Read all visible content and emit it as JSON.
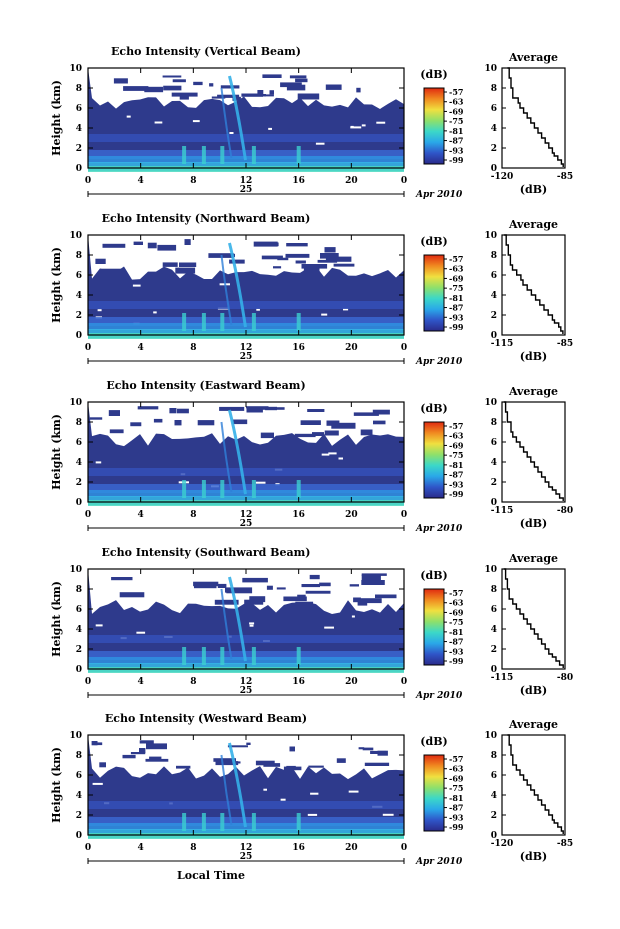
{
  "shared": {
    "ylabel": "Height (km)",
    "day_label": "25",
    "month_year": "Apr 2010",
    "xlabel": "Local Time",
    "unit_label": "(dB)",
    "avg_title": "Average",
    "avg_xlabel": "(dB)",
    "time_ticks": [
      "0",
      "4",
      "8",
      "12",
      "16",
      "20",
      "0"
    ],
    "height_ticks": [
      "0",
      "2",
      "4",
      "6",
      "8",
      "10"
    ],
    "colorbar_ticks": [
      "-57",
      "-63",
      "-69",
      "-75",
      "-81",
      "-87",
      "-93",
      "-99"
    ],
    "colors": {
      "background": "#2e3a8c",
      "colorbar_stops": [
        "#2a2a8a",
        "#2f55c8",
        "#2aa8e8",
        "#3cd8c8",
        "#8fe06a",
        "#f0e040",
        "#f08a20",
        "#e02a10"
      ]
    }
  },
  "panels": [
    {
      "title": "Echo Intensity (Vertical Beam)",
      "avg_ticks": [
        "-120",
        "-85"
      ]
    },
    {
      "title": "Echo Intensity (Northward Beam)",
      "avg_ticks": [
        "-115",
        "-85"
      ]
    },
    {
      "title": "Echo Intensity (Eastward Beam)",
      "avg_ticks": [
        "-115",
        "-80"
      ]
    },
    {
      "title": "Echo Intensity (Southward Beam)",
      "avg_ticks": [
        "-115",
        "-80"
      ]
    },
    {
      "title": "Echo Intensity (Westward Beam)",
      "avg_ticks": [
        "-120",
        "-85"
      ]
    }
  ],
  "chart_data": [
    {
      "type": "heatmap",
      "title": "Echo Intensity (Vertical Beam)",
      "ylabel": "Height (km)",
      "xlim": [
        0,
        24
      ],
      "ylim": [
        0,
        10
      ],
      "zlim": [
        -99,
        -57
      ],
      "colorbar_label": "(dB)"
    },
    {
      "type": "line",
      "title": "Average",
      "xlabel": "(dB)",
      "ylabel": "",
      "xlim": [
        -120,
        -85
      ],
      "ylim": [
        0,
        10
      ],
      "x": [
        -117,
        -116,
        -115,
        -114,
        -111,
        -110,
        -108,
        -106,
        -104,
        -102,
        -100,
        -98,
        -96,
        -94,
        -92,
        -91,
        -89,
        -87,
        -86
      ],
      "y": [
        10,
        9,
        8,
        7,
        6.5,
        6,
        5.5,
        5,
        4.5,
        4,
        3.5,
        3,
        2.5,
        2,
        1.5,
        1.2,
        0.8,
        0.4,
        0.1
      ]
    },
    {
      "type": "heatmap",
      "title": "Echo Intensity (Northward Beam)",
      "ylabel": "Height (km)",
      "xlim": [
        0,
        24
      ],
      "ylim": [
        0,
        10
      ],
      "zlim": [
        -99,
        -57
      ],
      "colorbar_label": "(dB)"
    },
    {
      "type": "line",
      "title": "Average",
      "xlabel": "(dB)",
      "ylabel": "",
      "xlim": [
        -115,
        -85
      ],
      "ylim": [
        0,
        10
      ],
      "x": [
        -114,
        -113,
        -112,
        -111,
        -110,
        -108,
        -106,
        -105,
        -103,
        -101,
        -99,
        -97,
        -95,
        -93,
        -91,
        -90,
        -88,
        -87,
        -86
      ],
      "y": [
        10,
        9,
        8,
        7,
        6.5,
        6,
        5.5,
        5,
        4.5,
        4,
        3.5,
        3,
        2.5,
        2,
        1.5,
        1.2,
        0.8,
        0.4,
        0.1
      ]
    },
    {
      "type": "heatmap",
      "title": "Echo Intensity (Eastward Beam)",
      "ylabel": "Height (km)",
      "xlim": [
        0,
        24
      ],
      "ylim": [
        0,
        10
      ],
      "zlim": [
        -99,
        -57
      ],
      "colorbar_label": "(dB)"
    },
    {
      "type": "line",
      "title": "Average",
      "xlabel": "(dB)",
      "ylabel": "",
      "xlim": [
        -115,
        -80
      ],
      "ylim": [
        0,
        10
      ],
      "x": [
        -114,
        -113,
        -112,
        -110,
        -109,
        -107,
        -105,
        -103,
        -101,
        -99,
        -97,
        -95,
        -93,
        -91,
        -89,
        -87,
        -85,
        -83,
        -81
      ],
      "y": [
        10,
        9,
        8,
        7,
        6.5,
        6,
        5.5,
        5,
        4.5,
        4,
        3.5,
        3,
        2.5,
        2,
        1.5,
        1.2,
        0.8,
        0.4,
        0.1
      ]
    },
    {
      "type": "heatmap",
      "title": "Echo Intensity (Southward Beam)",
      "ylabel": "Height (km)",
      "xlim": [
        0,
        24
      ],
      "ylim": [
        0,
        10
      ],
      "zlim": [
        -99,
        -57
      ],
      "colorbar_label": "(dB)"
    },
    {
      "type": "line",
      "title": "Average",
      "xlabel": "(dB)",
      "ylabel": "",
      "xlim": [
        -115,
        -80
      ],
      "ylim": [
        0,
        10
      ],
      "x": [
        -114,
        -113,
        -112,
        -111,
        -109,
        -107,
        -105,
        -103,
        -101,
        -99,
        -97,
        -95,
        -93,
        -91,
        -89,
        -87,
        -85,
        -83,
        -81
      ],
      "y": [
        10,
        9,
        8,
        7,
        6.5,
        6,
        5.5,
        5,
        4.5,
        4,
        3.5,
        3,
        2.5,
        2,
        1.5,
        1.2,
        0.8,
        0.4,
        0.1
      ]
    },
    {
      "type": "heatmap",
      "title": "Echo Intensity (Westward Beam)",
      "ylabel": "Height (km)",
      "xlabel": "Local Time",
      "xlim": [
        0,
        24
      ],
      "ylim": [
        0,
        10
      ],
      "zlim": [
        -99,
        -57
      ],
      "colorbar_label": "(dB)"
    },
    {
      "type": "line",
      "title": "Average",
      "xlabel": "(dB)",
      "ylabel": "",
      "xlim": [
        -120,
        -85
      ],
      "ylim": [
        0,
        10
      ],
      "x": [
        -117,
        -116,
        -115,
        -114,
        -112,
        -110,
        -108,
        -106,
        -104,
        -102,
        -100,
        -98,
        -96,
        -94,
        -92,
        -91,
        -89,
        -87,
        -86
      ],
      "y": [
        10,
        9,
        8,
        7,
        6.5,
        6,
        5.5,
        5,
        4.5,
        4,
        3.5,
        3,
        2.5,
        2,
        1.5,
        1.2,
        0.8,
        0.4,
        0.1
      ]
    }
  ]
}
